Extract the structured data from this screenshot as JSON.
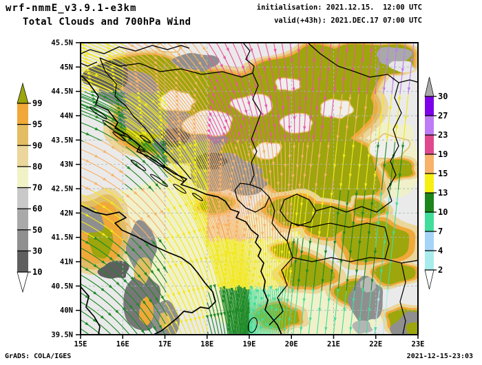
{
  "header": {
    "title": "wrf-nmmE_v3.9.1-e3km",
    "subtitle": "Total Clouds and 700hPa Wind",
    "init_line": "initialisation: 2021.12.15.  12:00 UTC",
    "valid_line": "valid(+43h): 2021.DEC.17 07:00 UTC"
  },
  "footer": {
    "credit": "GrADS: COLA/IGES",
    "timestamp": "2021-12-15-23:03"
  },
  "axes": {
    "lon_labels": [
      "15E",
      "16E",
      "17E",
      "18E",
      "19E",
      "20E",
      "21E",
      "22E",
      "23E"
    ],
    "lat_labels": [
      "45.5N",
      "45N",
      "44.5N",
      "44N",
      "43.5N",
      "43N",
      "42.5N",
      "42N",
      "41.5N",
      "41N",
      "40.5N",
      "40N",
      "39.5N"
    ]
  },
  "cloud_scale": {
    "labels": [
      "99",
      "95",
      "90",
      "80",
      "70",
      "60",
      "50",
      "30",
      "10"
    ],
    "colors_top_to_bottom": [
      "#f0a838",
      "#e2bd63",
      "#ebd69b",
      "#f1f2c6",
      "#c9c9c9",
      "#a9a9a9",
      "#8f8f8f",
      "#5f5f5f"
    ],
    "above_top_color": "#9da60c",
    "below_bottom_color": "#ffffff"
  },
  "wind_scale": {
    "labels": [
      "30",
      "27",
      "23",
      "19",
      "15",
      "13",
      "10",
      "7",
      "4",
      "2"
    ],
    "colors_top_to_bottom": [
      "#7d00e8",
      "#bd7bf5",
      "#e0488e",
      "#f8b26a",
      "#f5ef12",
      "#1c851c",
      "#43dd9b",
      "#a6d4f8",
      "#a9ecec"
    ],
    "above_top_color": "#a9a9a9",
    "below_bottom_color": "#ffffff"
  },
  "map_style": {
    "background": "#eaeaea",
    "grid_color": "#a9baba",
    "outline_color": "#000000",
    "cloud_colors": {
      "overcast": "#9da60c",
      "p95": "#f0a838",
      "p90": "#e2bd63",
      "p80": "#ebd69b",
      "p70": "#f1f2c6",
      "gray": "#8f8f8f",
      "gray_dark": "#5f5f5f",
      "gray_light": "#a9a9a9",
      "hole": "#efefec"
    },
    "stream_palette": {
      "Y": "#f2e81e",
      "O": "#f8b26a",
      "G": "#1e8a28",
      "S": "#43dd9b",
      "P": "#ee55a6",
      "L": "#bd7bf5",
      "C": "#a9ecec"
    },
    "stream_grid": [
      [
        "Y",
        "O",
        "O",
        "P",
        "P",
        "P",
        "P",
        "L"
      ],
      [
        "G",
        "Y",
        "O",
        "P",
        "P",
        "P",
        "O",
        "Y"
      ],
      [
        "O",
        "G",
        "Y",
        "O",
        "O",
        "O",
        "Y",
        "G"
      ],
      [
        "Y",
        "O",
        "Y",
        "O",
        "O",
        "Y",
        "G",
        "S"
      ],
      [
        "G",
        "G",
        "Y",
        "Y",
        "Y",
        "G",
        "G",
        "S"
      ],
      [
        "G",
        "G",
        "Y",
        "G",
        "S",
        "S",
        "S",
        "C"
      ]
    ]
  }
}
